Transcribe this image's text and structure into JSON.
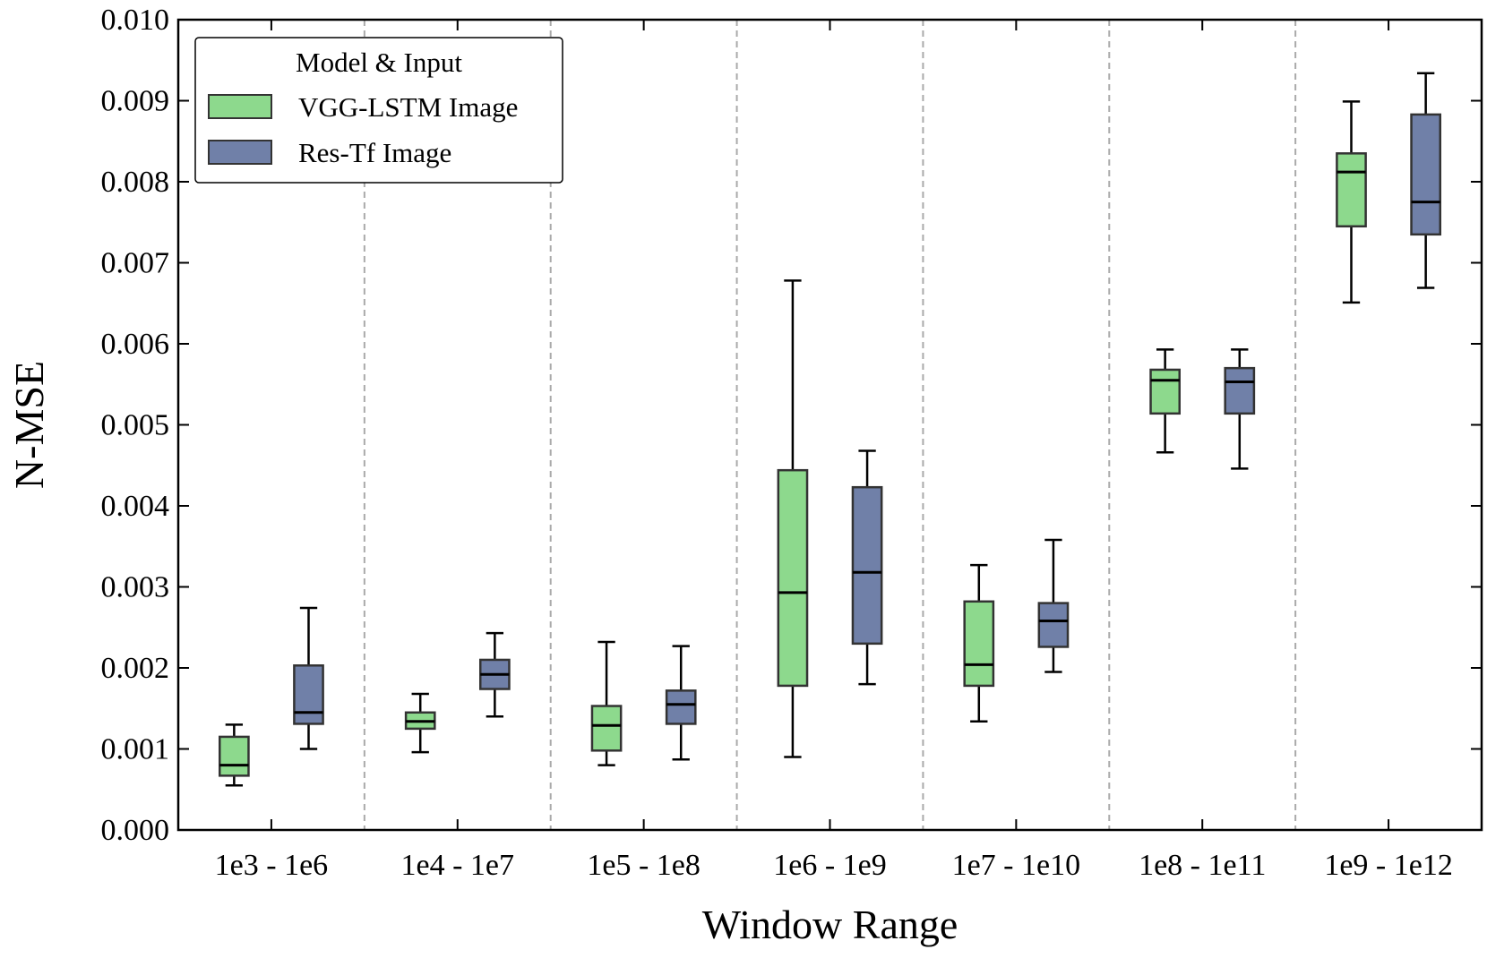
{
  "chart_data": {
    "type": "box",
    "xlabel": "Window Range",
    "ylabel": "N-MSE",
    "ylim": [
      0.0,
      0.01
    ],
    "yticks": [
      "0.000",
      "0.001",
      "0.002",
      "0.003",
      "0.004",
      "0.005",
      "0.006",
      "0.007",
      "0.008",
      "0.009",
      "0.010"
    ],
    "categories": [
      "1e3 - 1e6",
      "1e4 - 1e7",
      "1e5 - 1e8",
      "1e6 - 1e9",
      "1e7 - 1e10",
      "1e8 - 1e11",
      "1e9 - 1e12"
    ],
    "grid": "vertical dashed separators between categories",
    "legend": {
      "title": "Model & Input",
      "placement": "top-left"
    },
    "series": [
      {
        "name": "VGG-LSTM Image",
        "color": "#8dd98d",
        "boxes": [
          {
            "whisker_low": 0.00055,
            "q1": 0.00067,
            "median": 0.0008,
            "q3": 0.00115,
            "whisker_high": 0.0013
          },
          {
            "whisker_low": 0.00096,
            "q1": 0.00125,
            "median": 0.00134,
            "q3": 0.00145,
            "whisker_high": 0.00168
          },
          {
            "whisker_low": 0.0008,
            "q1": 0.00098,
            "median": 0.00129,
            "q3": 0.00153,
            "whisker_high": 0.00232
          },
          {
            "whisker_low": 0.0009,
            "q1": 0.00178,
            "median": 0.00293,
            "q3": 0.00444,
            "whisker_high": 0.00678
          },
          {
            "whisker_low": 0.00134,
            "q1": 0.00178,
            "median": 0.00204,
            "q3": 0.00282,
            "whisker_high": 0.00327
          },
          {
            "whisker_low": 0.00466,
            "q1": 0.00514,
            "median": 0.00555,
            "q3": 0.00568,
            "whisker_high": 0.00593
          },
          {
            "whisker_low": 0.00651,
            "q1": 0.00745,
            "median": 0.00812,
            "q3": 0.00835,
            "whisker_high": 0.00899
          }
        ]
      },
      {
        "name": "Res-Tf Image",
        "color": "#7080a8",
        "boxes": [
          {
            "whisker_low": 0.001,
            "q1": 0.00131,
            "median": 0.00145,
            "q3": 0.00203,
            "whisker_high": 0.00274
          },
          {
            "whisker_low": 0.0014,
            "q1": 0.00174,
            "median": 0.00192,
            "q3": 0.0021,
            "whisker_high": 0.00243
          },
          {
            "whisker_low": 0.00087,
            "q1": 0.00131,
            "median": 0.00155,
            "q3": 0.00172,
            "whisker_high": 0.00227
          },
          {
            "whisker_low": 0.0018,
            "q1": 0.0023,
            "median": 0.00318,
            "q3": 0.00423,
            "whisker_high": 0.00468
          },
          {
            "whisker_low": 0.00195,
            "q1": 0.00226,
            "median": 0.00258,
            "q3": 0.0028,
            "whisker_high": 0.00358
          },
          {
            "whisker_low": 0.00446,
            "q1": 0.00514,
            "median": 0.00553,
            "q3": 0.0057,
            "whisker_high": 0.00593
          },
          {
            "whisker_low": 0.00669,
            "q1": 0.00735,
            "median": 0.00775,
            "q3": 0.00883,
            "whisker_high": 0.00934
          }
        ]
      }
    ]
  }
}
